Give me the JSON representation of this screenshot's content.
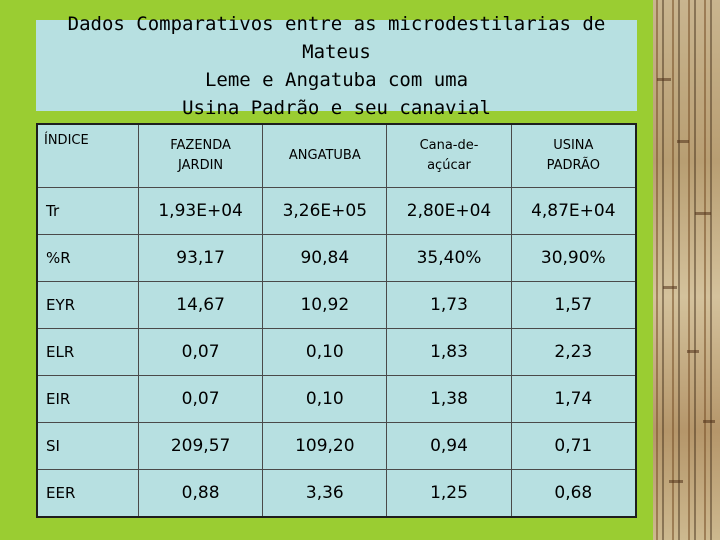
{
  "title": "Dados Comparativos entre as microdestilarias de Mateus\nLeme e Angatuba com uma\nUsina Padrão e seu canavial",
  "table": {
    "headers": [
      "ÍNDICE",
      "FAZENDA\nJARDIN",
      "ANGATUBA",
      "Cana-de-\naçúcar",
      "USINA\nPADRÃO"
    ],
    "rows": [
      [
        "Tr",
        "1,93E+04",
        "3,26E+05",
        "2,80E+04",
        "4,87E+04"
      ],
      [
        "%R",
        "93,17",
        "90,84",
        "35,40%",
        "30,90%"
      ],
      [
        "EYR",
        "14,67",
        "10,92",
        "1,73",
        "1,57"
      ],
      [
        "ELR",
        "0,07",
        "0,10",
        "1,83",
        "2,23"
      ],
      [
        "EIR",
        "0,07",
        "0,10",
        "1,38",
        "1,74"
      ],
      [
        "SI",
        "209,57",
        "109,20",
        "0,94",
        "0,71"
      ],
      [
        "EER",
        "0,88",
        "3,36",
        "1,25",
        "0,68"
      ]
    ]
  },
  "colors": {
    "background": "#9acd32",
    "panel": "#b7e0e1"
  }
}
